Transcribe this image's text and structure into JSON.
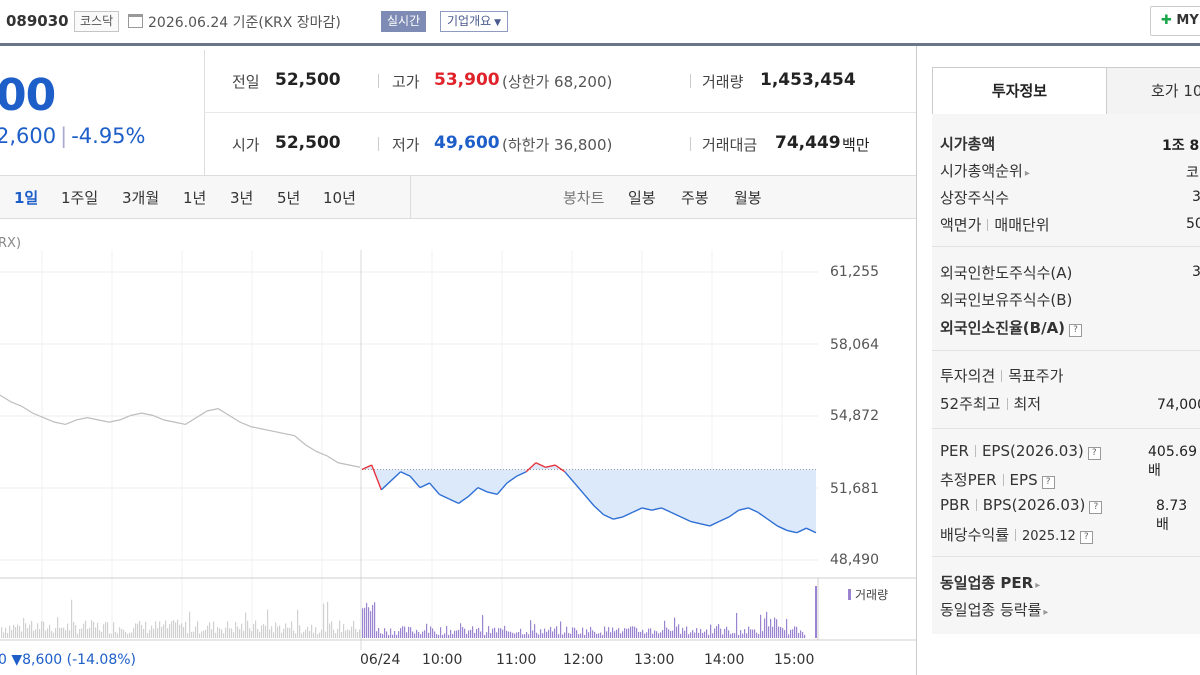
{
  "header": {
    "stock_code": "089030",
    "market": "코스닥",
    "base_date": "2026.06.24 기준(KRX 장마감)",
    "realtime": "실시간",
    "company_overview": "기업개요",
    "my_button": "MY"
  },
  "price": {
    "current": "00",
    "change": "2,600",
    "change_pct": "-4.95%"
  },
  "stats": {
    "prev_label": "전일",
    "prev_value": "52,500",
    "open_label": "시가",
    "open_value": "52,500",
    "high_label": "고가",
    "high_value": "53,900",
    "upper_limit": "(상한가 68,200)",
    "low_label": "저가",
    "low_value": "49,600",
    "lower_limit": "(하한가 36,800)",
    "volume_label": "거래량",
    "volume_value": "1,453,454",
    "amount_label": "거래대금",
    "amount_value": "74,449",
    "amount_unit": "백만"
  },
  "periods": [
    "1일",
    "1주일",
    "3개월",
    "1년",
    "3년",
    "5년",
    "10년"
  ],
  "chart_types": [
    "봉차트",
    "일봉",
    "주봉",
    "월봉"
  ],
  "chart_labels": {
    "krx": "RX)",
    "x_change": "0 ▼8,600 (-14.08%)",
    "volume_legend": "거래량"
  },
  "chart_data": {
    "type": "line",
    "y_ticks": [
      "61,255",
      "58,064",
      "54,872",
      "51,681",
      "48,490"
    ],
    "ylim": [
      48490,
      61255
    ],
    "x_ticks": [
      "06/24",
      "10:00",
      "11:00",
      "12:00",
      "13:00",
      "14:00",
      "15:00"
    ],
    "reference_price": 52500,
    "series": [
      {
        "values": [
          55800,
          55500,
          55300,
          55000,
          54800,
          54600,
          54500,
          54700,
          54800,
          54700,
          54600,
          54700,
          54900,
          55000,
          54900,
          54700,
          54600,
          54500,
          54800,
          55100,
          55200,
          54900,
          54600,
          54400,
          54300,
          54200,
          54100,
          54000,
          53600,
          53300,
          53100,
          52800,
          52700,
          52600
        ]
      },
      {
        "values": [
          52500,
          52700,
          51600,
          52000,
          52400,
          52200,
          51700,
          51900,
          51400,
          51200,
          51000,
          51300,
          51700,
          51500,
          51400,
          51900,
          52200,
          52400,
          52800,
          52600,
          52700,
          52400,
          51900,
          51400,
          50900,
          50500,
          50300,
          50400,
          50600,
          50800,
          50700,
          50800,
          50600,
          50400,
          50200,
          50100,
          50000,
          50200,
          50400,
          50700,
          50800,
          50600,
          50300,
          50000,
          49800,
          49700,
          49900,
          49700
        ]
      }
    ]
  },
  "right_panel": {
    "tab_invest": "투자정보",
    "tab_hoga": "호가 10",
    "market_cap_label": "시가총액",
    "market_cap_value": "1조 8",
    "market_cap_rank_label": "시가총액순위",
    "market_cap_rank_value": "코",
    "listed_shares_label": "상장주식수",
    "listed_shares_value": "3",
    "par_label": "액면가",
    "trade_unit_label": "매매단위",
    "par_value": "50",
    "foreign_limit_label": "외국인한도주식수(A)",
    "foreign_limit_value": "3",
    "foreign_hold_label": "외국인보유주식수(B)",
    "foreign_ratio_label": "외국인소진율(B/A)",
    "opinion_label": "투자의견",
    "target_label": "목표주가",
    "high52_label": "52주최고",
    "low52_label": "최저",
    "high52_value": "74,000",
    "per_label": "PER",
    "eps_label": "EPS(2026.03)",
    "per_value": "405.69배",
    "est_per_label": "추정PER",
    "est_eps_label": "EPS",
    "pbr_label": "PBR",
    "bps_label": "BPS(2026.03)",
    "pbr_value": "8.73배",
    "dividend_label": "배당수익률",
    "dividend_year": "2025.12",
    "peer_per_label": "동일업종 PER",
    "peer_rate_label": "동일업종 등락률"
  }
}
